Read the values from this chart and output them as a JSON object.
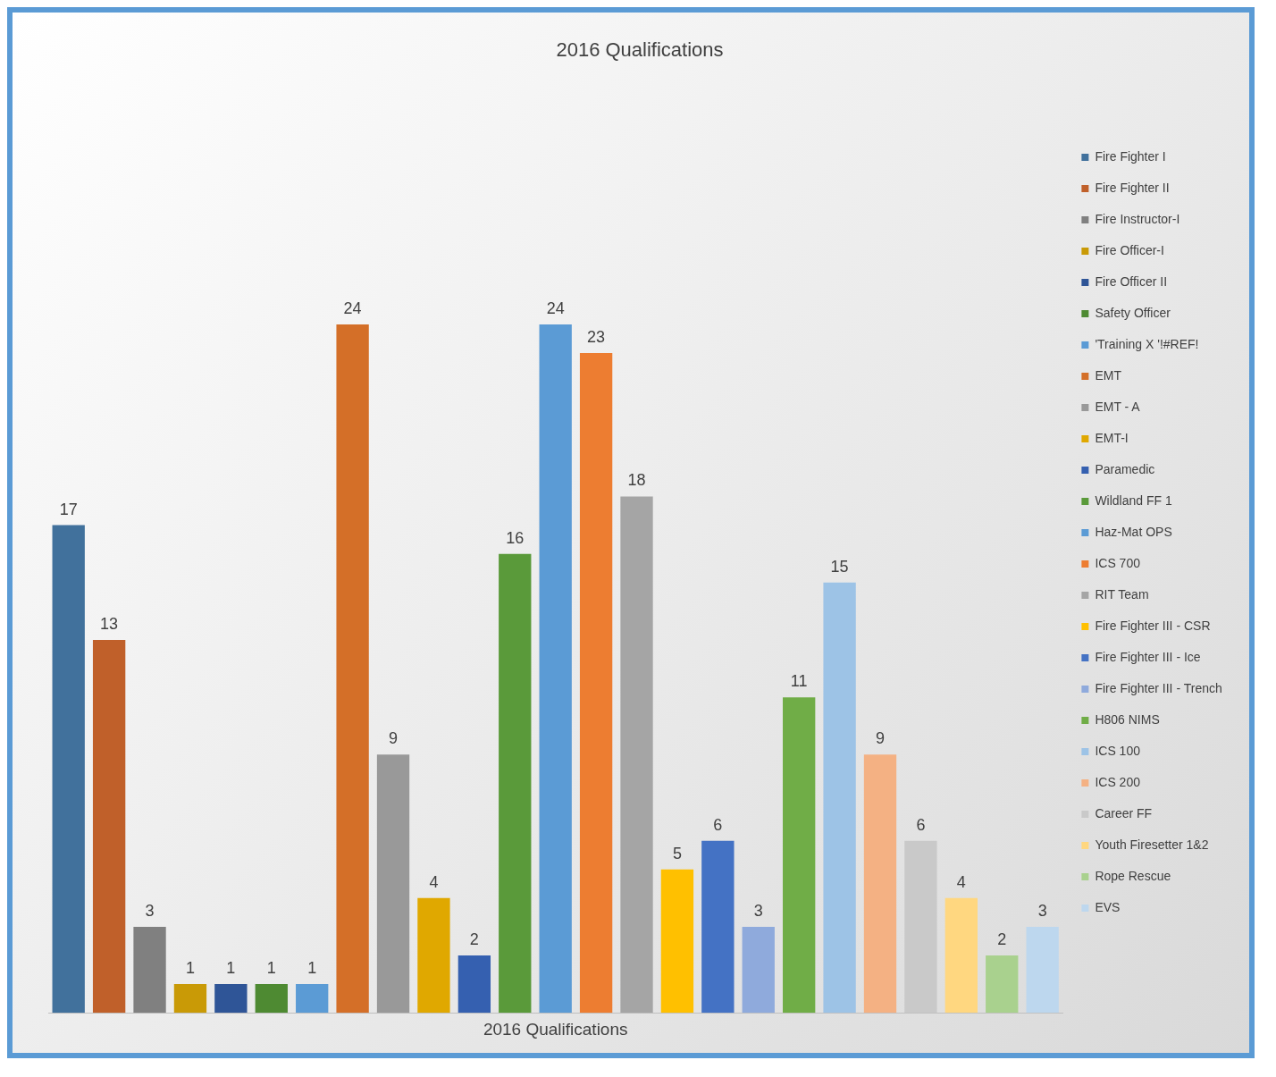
{
  "chart_data": {
    "type": "bar",
    "title": "2016 Qualifications",
    "xlabel": "2016 Qualifications",
    "categories": [
      null,
      null,
      null,
      null,
      null,
      null,
      null,
      null,
      null,
      null,
      null,
      null,
      null,
      null,
      null,
      null,
      null,
      null,
      null,
      null,
      null,
      null,
      null,
      null,
      null
    ],
    "series": [
      {
        "name": "Fire Fighter I",
        "color": "#41719c",
        "values": [
          17,
          null,
          null,
          null,
          null,
          null,
          null,
          null,
          null,
          null,
          null,
          null,
          null,
          null,
          null,
          null,
          null,
          null,
          null,
          null,
          null,
          null,
          null,
          null,
          null
        ]
      },
      {
        "name": "Fire Fighter II",
        "color": "#c0602a",
        "values": [
          null,
          13,
          null,
          null,
          null,
          null,
          null,
          null,
          null,
          null,
          null,
          null,
          null,
          null,
          null,
          null,
          null,
          null,
          null,
          null,
          null,
          null,
          null,
          null,
          null
        ]
      },
      {
        "name": "Fire Instructor-I",
        "color": "#808080",
        "values": [
          null,
          null,
          3,
          null,
          null,
          null,
          null,
          null,
          null,
          null,
          null,
          null,
          null,
          null,
          null,
          null,
          null,
          null,
          null,
          null,
          null,
          null,
          null,
          null,
          null
        ]
      },
      {
        "name": "Fire Officer-I",
        "color": "#c99a06",
        "values": [
          null,
          null,
          null,
          1,
          null,
          null,
          null,
          null,
          null,
          null,
          null,
          null,
          null,
          null,
          null,
          null,
          null,
          null,
          null,
          null,
          null,
          null,
          null,
          null,
          null
        ]
      },
      {
        "name": "Fire Officer II",
        "color": "#2f5597",
        "values": [
          null,
          null,
          null,
          null,
          1,
          null,
          null,
          null,
          null,
          null,
          null,
          null,
          null,
          null,
          null,
          null,
          null,
          null,
          null,
          null,
          null,
          null,
          null,
          null,
          null
        ]
      },
      {
        "name": "Safety Officer",
        "color": "#4e8a32",
        "values": [
          null,
          null,
          null,
          null,
          null,
          1,
          null,
          null,
          null,
          null,
          null,
          null,
          null,
          null,
          null,
          null,
          null,
          null,
          null,
          null,
          null,
          null,
          null,
          null,
          null
        ]
      },
      {
        "name": "'Training X '!#REF!",
        "color": "#5b9bd5",
        "values": [
          null,
          null,
          null,
          null,
          null,
          null,
          1,
          null,
          null,
          null,
          null,
          null,
          null,
          null,
          null,
          null,
          null,
          null,
          null,
          null,
          null,
          null,
          null,
          null,
          null
        ]
      },
      {
        "name": "EMT",
        "color": "#d46f28",
        "values": [
          null,
          null,
          null,
          null,
          null,
          null,
          null,
          24,
          null,
          null,
          null,
          null,
          null,
          null,
          null,
          null,
          null,
          null,
          null,
          null,
          null,
          null,
          null,
          null,
          null
        ]
      },
      {
        "name": "EMT - A",
        "color": "#999999",
        "values": [
          null,
          null,
          null,
          null,
          null,
          null,
          null,
          null,
          9,
          null,
          null,
          null,
          null,
          null,
          null,
          null,
          null,
          null,
          null,
          null,
          null,
          null,
          null,
          null,
          null
        ]
      },
      {
        "name": "EMT-I",
        "color": "#e0a800",
        "values": [
          null,
          null,
          null,
          null,
          null,
          null,
          null,
          null,
          null,
          4,
          null,
          null,
          null,
          null,
          null,
          null,
          null,
          null,
          null,
          null,
          null,
          null,
          null,
          null,
          null
        ]
      },
      {
        "name": "Paramedic",
        "color": "#3560b0",
        "values": [
          null,
          null,
          null,
          null,
          null,
          null,
          null,
          null,
          null,
          null,
          2,
          null,
          null,
          null,
          null,
          null,
          null,
          null,
          null,
          null,
          null,
          null,
          null,
          null,
          null
        ]
      },
      {
        "name": "Wildland FF 1",
        "color": "#5a9a3a",
        "values": [
          null,
          null,
          null,
          null,
          null,
          null,
          null,
          null,
          null,
          null,
          null,
          16,
          null,
          null,
          null,
          null,
          null,
          null,
          null,
          null,
          null,
          null,
          null,
          null,
          null
        ]
      },
      {
        "name": "Haz-Mat OPS",
        "color": "#5b9bd5",
        "values": [
          null,
          null,
          null,
          null,
          null,
          null,
          null,
          null,
          null,
          null,
          null,
          null,
          24,
          null,
          null,
          null,
          null,
          null,
          null,
          null,
          null,
          null,
          null,
          null,
          null
        ]
      },
      {
        "name": "ICS 700",
        "color": "#ed7d31",
        "values": [
          null,
          null,
          null,
          null,
          null,
          null,
          null,
          null,
          null,
          null,
          null,
          null,
          null,
          23,
          null,
          null,
          null,
          null,
          null,
          null,
          null,
          null,
          null,
          null,
          null
        ]
      },
      {
        "name": "RIT Team",
        "color": "#a5a5a5",
        "values": [
          null,
          null,
          null,
          null,
          null,
          null,
          null,
          null,
          null,
          null,
          null,
          null,
          null,
          null,
          18,
          null,
          null,
          null,
          null,
          null,
          null,
          null,
          null,
          null,
          null
        ]
      },
      {
        "name": "Fire Fighter III - CSR",
        "color": "#ffc000",
        "values": [
          null,
          null,
          null,
          null,
          null,
          null,
          null,
          null,
          null,
          null,
          null,
          null,
          null,
          null,
          null,
          5,
          null,
          null,
          null,
          null,
          null,
          null,
          null,
          null,
          null
        ]
      },
      {
        "name": "Fire Fighter III - Ice",
        "color": "#4472c4",
        "values": [
          null,
          null,
          null,
          null,
          null,
          null,
          null,
          null,
          null,
          null,
          null,
          null,
          null,
          null,
          null,
          null,
          6,
          null,
          null,
          null,
          null,
          null,
          null,
          null,
          null
        ]
      },
      {
        "name": "Fire Fighter III - Trench",
        "color": "#8faadc",
        "values": [
          null,
          null,
          null,
          null,
          null,
          null,
          null,
          null,
          null,
          null,
          null,
          null,
          null,
          null,
          null,
          null,
          null,
          3,
          null,
          null,
          null,
          null,
          null,
          null,
          null
        ]
      },
      {
        "name": "H806 NIMS",
        "color": "#70ad47",
        "values": [
          null,
          null,
          null,
          null,
          null,
          null,
          null,
          null,
          null,
          null,
          null,
          null,
          null,
          null,
          null,
          null,
          null,
          null,
          11,
          null,
          null,
          null,
          null,
          null,
          null
        ]
      },
      {
        "name": "ICS 100",
        "color": "#9dc3e6",
        "values": [
          null,
          null,
          null,
          null,
          null,
          null,
          null,
          null,
          null,
          null,
          null,
          null,
          null,
          null,
          null,
          null,
          null,
          null,
          null,
          15,
          null,
          null,
          null,
          null,
          null
        ]
      },
      {
        "name": "ICS 200",
        "color": "#f4b183",
        "values": [
          null,
          null,
          null,
          null,
          null,
          null,
          null,
          null,
          null,
          null,
          null,
          null,
          null,
          null,
          null,
          null,
          null,
          null,
          null,
          null,
          9,
          null,
          null,
          null,
          null
        ]
      },
      {
        "name": "Career FF",
        "color": "#c9c9c9",
        "values": [
          null,
          null,
          null,
          null,
          null,
          null,
          null,
          null,
          null,
          null,
          null,
          null,
          null,
          null,
          null,
          null,
          null,
          null,
          null,
          null,
          null,
          6,
          null,
          null,
          null
        ]
      },
      {
        "name": "Youth Firesetter 1&2",
        "color": "#ffd780",
        "values": [
          null,
          null,
          null,
          null,
          null,
          null,
          null,
          null,
          null,
          null,
          null,
          null,
          null,
          null,
          null,
          null,
          null,
          null,
          null,
          null,
          null,
          null,
          4,
          null,
          null
        ]
      },
      {
        "name": "Rope Rescue",
        "color": "#a9d18e",
        "values": [
          null,
          null,
          null,
          null,
          null,
          null,
          null,
          null,
          null,
          null,
          null,
          null,
          null,
          null,
          null,
          null,
          null,
          null,
          null,
          null,
          null,
          null,
          null,
          2,
          null
        ]
      },
      {
        "name": "EVS",
        "color": "#bdd7ee",
        "values": [
          null,
          null,
          null,
          null,
          null,
          null,
          null,
          null,
          null,
          null,
          null,
          null,
          null,
          null,
          null,
          null,
          null,
          null,
          null,
          null,
          null,
          null,
          null,
          null,
          3
        ]
      }
    ],
    "stacked": true,
    "data_labels": true,
    "grid": false,
    "legend": "right"
  }
}
